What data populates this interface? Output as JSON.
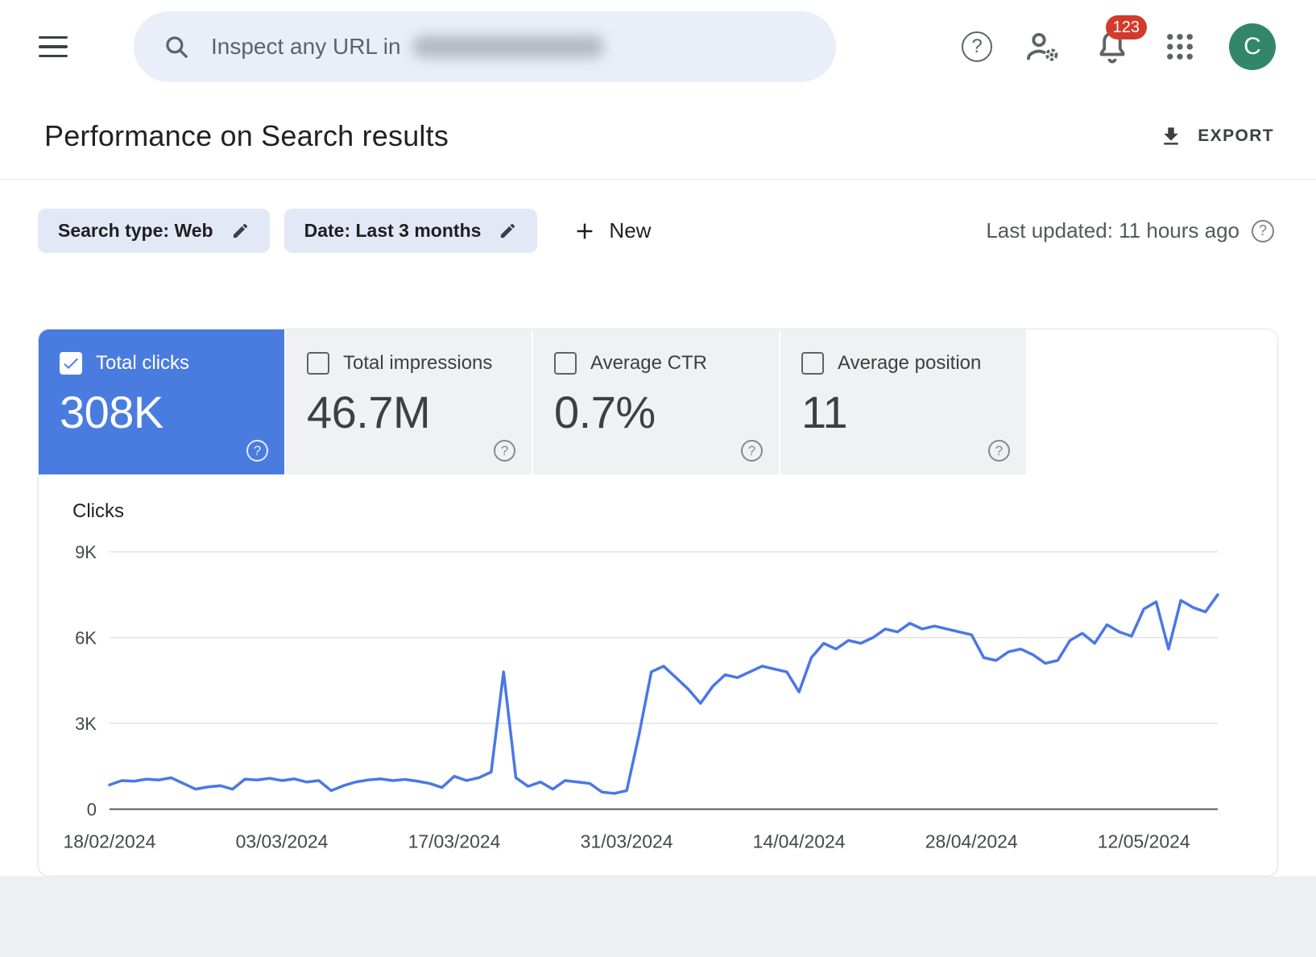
{
  "topbar": {
    "search_placeholder": "Inspect any URL in",
    "search_property_redacted": true,
    "notification_badge": "123",
    "avatar_letter": "C"
  },
  "header": {
    "title": "Performance on Search results",
    "export_label": "EXPORT"
  },
  "filters": {
    "search_type_chip": "Search type: Web",
    "date_chip": "Date: Last 3 months",
    "new_button": "New",
    "last_updated": "Last updated: 11 hours ago"
  },
  "metrics": [
    {
      "label": "Total clicks",
      "value": "308K",
      "selected": true
    },
    {
      "label": "Total impressions",
      "value": "46.7M",
      "selected": false
    },
    {
      "label": "Average CTR",
      "value": "0.7%",
      "selected": false
    },
    {
      "label": "Average position",
      "value": "11",
      "selected": false
    }
  ],
  "icons": {
    "menu": "hamburger",
    "search": "magnifier",
    "help": "question-circle",
    "user_settings": "person-with-gear",
    "notifications": "bell",
    "apps": "3x3-grid",
    "export": "download-arrow",
    "chip_edit": "pencil",
    "new": "plus",
    "metric_help": "question-circle"
  },
  "colors": {
    "selected_card_blue": "#4a7ce0",
    "line_blue": "#4a77e8",
    "chip_background": "#e3e8f7",
    "badge_red": "#d33a2c",
    "avatar_green": "#32876a",
    "unselected_card_grey": "#f0f1f2"
  },
  "chart_data": {
    "type": "line",
    "title": "Clicks over time",
    "ylabel": "Clicks",
    "ylim": [
      0,
      9000
    ],
    "grid": "horizontal",
    "legend": false,
    "y_ticks": [
      {
        "value": 9000,
        "label": "9K"
      },
      {
        "value": 6000,
        "label": "6K"
      },
      {
        "value": 3000,
        "label": "3K"
      },
      {
        "value": 0,
        "label": "0"
      }
    ],
    "x_tick_labels": [
      "18/02/2024",
      "03/03/2024",
      "17/03/2024",
      "31/03/2024",
      "14/04/2024",
      "28/04/2024",
      "12/05/2024"
    ],
    "x_tick_indices": [
      0,
      14,
      28,
      42,
      56,
      70,
      84
    ],
    "series": [
      {
        "name": "Total clicks",
        "color": "#4a77e8",
        "values": [
          850,
          1000,
          980,
          1050,
          1020,
          1100,
          900,
          700,
          780,
          820,
          700,
          1050,
          1020,
          1080,
          1000,
          1060,
          950,
          1000,
          650,
          820,
          950,
          1020,
          1060,
          1000,
          1040,
          980,
          900,
          760,
          1150,
          1000,
          1100,
          1300,
          4800,
          1100,
          800,
          950,
          700,
          1000,
          950,
          900,
          600,
          550,
          650,
          2600,
          4800,
          5000,
          4600,
          4200,
          3700,
          4300,
          4700,
          4600,
          4800,
          5000,
          4900,
          4800,
          4100,
          5300,
          5800,
          5600,
          5900,
          5800,
          6000,
          6300,
          6200,
          6500,
          6300,
          6400,
          6300,
          6200,
          6100,
          5300,
          5200,
          5500,
          5600,
          5400,
          5100,
          5200,
          5900,
          6150,
          5800,
          6450,
          6200,
          6050,
          7000,
          7250,
          5600,
          7300,
          7050,
          6900,
          7500
        ]
      }
    ]
  }
}
